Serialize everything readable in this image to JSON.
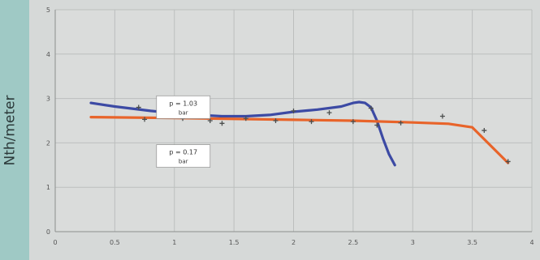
{
  "chart_data": {
    "type": "line",
    "xlabel": "",
    "ylabel": "Nth/meter",
    "xlim": [
      0,
      4
    ],
    "ylim": [
      0,
      5
    ],
    "x_ticks": [
      {
        "value": 0,
        "label": "0"
      },
      {
        "value": 0.5,
        "label": "0.5"
      },
      {
        "value": 1,
        "label": "1"
      },
      {
        "value": 1.5,
        "label": "1.5"
      },
      {
        "value": 2,
        "label": "2"
      },
      {
        "value": 2.5,
        "label": "2.5"
      },
      {
        "value": 3,
        "label": "3"
      },
      {
        "value": 3.5,
        "label": "3.5"
      },
      {
        "value": 4,
        "label": "4"
      }
    ],
    "y_ticks": [
      {
        "value": 0,
        "label": "0"
      },
      {
        "value": 1,
        "label": "1"
      },
      {
        "value": 2,
        "label": "2"
      },
      {
        "value": 3,
        "label": "3"
      },
      {
        "value": 4,
        "label": "4"
      },
      {
        "value": 5,
        "label": "5"
      }
    ],
    "grid": true,
    "series": [
      {
        "name": "p = 1.03 bar",
        "color": "#3c4aa4",
        "x": [
          0.3,
          0.5,
          0.8,
          1.0,
          1.2,
          1.4,
          1.6,
          1.8,
          2.0,
          2.2,
          2.4,
          2.5,
          2.55,
          2.6,
          2.65,
          2.7,
          2.75,
          2.8,
          2.85
        ],
        "y": [
          2.9,
          2.82,
          2.72,
          2.67,
          2.63,
          2.6,
          2.6,
          2.63,
          2.7,
          2.75,
          2.82,
          2.9,
          2.92,
          2.9,
          2.8,
          2.5,
          2.1,
          1.75,
          1.5
        ]
      },
      {
        "name": "p = 0.17 bar",
        "color": "#e8642a",
        "x": [
          0.3,
          1.0,
          2.0,
          2.5,
          3.0,
          3.3,
          3.5,
          3.8
        ],
        "y": [
          2.58,
          2.56,
          2.52,
          2.5,
          2.46,
          2.43,
          2.35,
          1.55
        ]
      }
    ],
    "markers": [
      {
        "x": 0.7,
        "y": 2.8
      },
      {
        "x": 0.75,
        "y": 2.53
      },
      {
        "x": 1.0,
        "y": 2.65
      },
      {
        "x": 1.07,
        "y": 2.55
      },
      {
        "x": 1.3,
        "y": 2.5
      },
      {
        "x": 1.4,
        "y": 2.44
      },
      {
        "x": 1.6,
        "y": 2.55
      },
      {
        "x": 1.85,
        "y": 2.5
      },
      {
        "x": 2.0,
        "y": 2.72
      },
      {
        "x": 2.15,
        "y": 2.48
      },
      {
        "x": 2.3,
        "y": 2.68
      },
      {
        "x": 2.5,
        "y": 2.48
      },
      {
        "x": 2.65,
        "y": 2.78
      },
      {
        "x": 2.7,
        "y": 2.4
      },
      {
        "x": 2.9,
        "y": 2.45
      },
      {
        "x": 3.25,
        "y": 2.6
      },
      {
        "x": 3.6,
        "y": 2.28
      },
      {
        "x": 3.8,
        "y": 1.58
      }
    ],
    "annotations": [
      {
        "line1": "p = 1.03",
        "line2": "bar",
        "x": 0.85,
        "y": 3.06
      },
      {
        "line1": "p = 0.17",
        "line2": "bar",
        "x": 0.85,
        "y": 1.96
      }
    ]
  }
}
